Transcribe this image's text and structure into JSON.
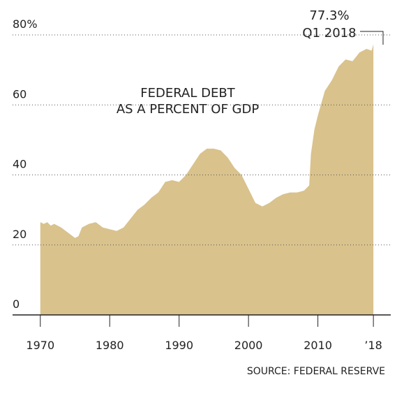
{
  "chart_data": {
    "type": "area",
    "title": [
      "FEDERAL DEBT",
      "AS A PERCENT OF GDP"
    ],
    "source": "SOURCE: FEDERAL RESERVE",
    "annotation": {
      "label": "77.3%",
      "date": "Q1 2018"
    },
    "color": "#d9c28c",
    "x": [
      1970,
      1970.5,
      1971,
      1971.5,
      1972,
      1973,
      1974,
      1975,
      1975.5,
      1976,
      1977,
      1978,
      1979,
      1980,
      1981,
      1982,
      1983,
      1984,
      1985,
      1986,
      1987,
      1988,
      1989,
      1990,
      1991,
      1992,
      1993,
      1994,
      1995,
      1996,
      1997,
      1998,
      1999,
      2000,
      2001,
      2002,
      2003,
      2004,
      2005,
      2006,
      2007,
      2008,
      2008.75,
      2009,
      2009.5,
      2010,
      2011,
      2012,
      2013,
      2014,
      2015,
      2016,
      2017,
      2017.75,
      2018
    ],
    "values": [
      26.5,
      26,
      26.5,
      25.5,
      26,
      25,
      23.5,
      22,
      22.5,
      25,
      26,
      26.5,
      25,
      24.5,
      24,
      25,
      27.5,
      30,
      31.5,
      33.5,
      35,
      38,
      38.5,
      38,
      40,
      43,
      46,
      47.5,
      47.5,
      47,
      45,
      42,
      40,
      36,
      32,
      31,
      32,
      33.5,
      34.5,
      35,
      35,
      35.5,
      37,
      46,
      53,
      57,
      64,
      67,
      71,
      73,
      72.5,
      75,
      76,
      75.5,
      77.3
    ],
    "xlim": [
      1966,
      2020.5
    ],
    "ylim": [
      0,
      80
    ],
    "xticks": [
      1970,
      1980,
      1990,
      2000,
      2010,
      {
        "value": 2018,
        "label": "’18"
      }
    ],
    "yticks": [
      0,
      20,
      40,
      60,
      {
        "value": 80,
        "label": "80%"
      }
    ],
    "grid": true
  }
}
